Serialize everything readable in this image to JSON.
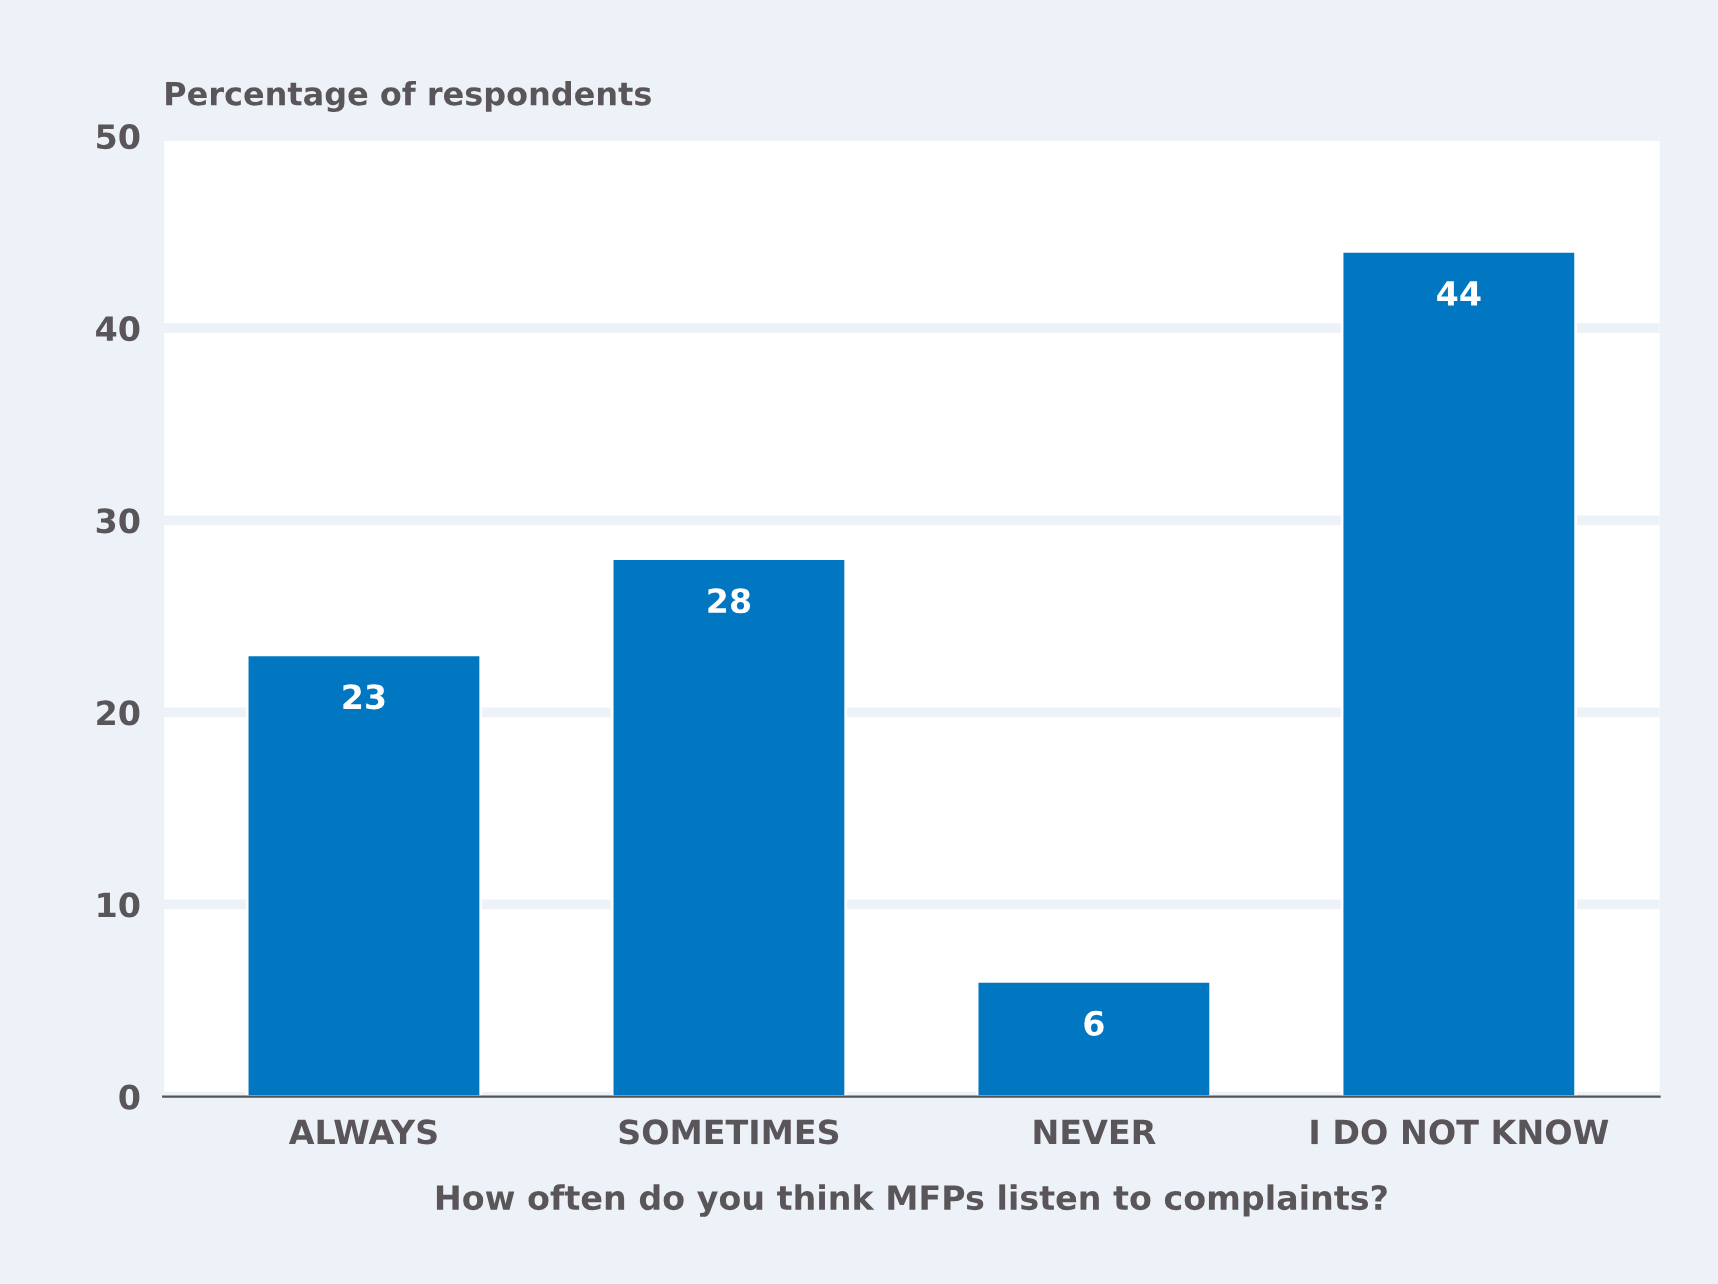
{
  "chart_data": {
    "type": "bar",
    "ylabel": "Percentage of respondents",
    "xlabel": "How often do you think MFPs listen to complaints?",
    "categories": [
      "ALWAYS",
      "SOMETIMES",
      "NEVER",
      "I DO NOT KNOW"
    ],
    "values": [
      23,
      28,
      6,
      44
    ],
    "color": "#0077c0",
    "ylim": [
      0,
      50
    ],
    "yticks": [
      0,
      10,
      20,
      30,
      40,
      50
    ],
    "grid": "y",
    "data_labels": true
  }
}
